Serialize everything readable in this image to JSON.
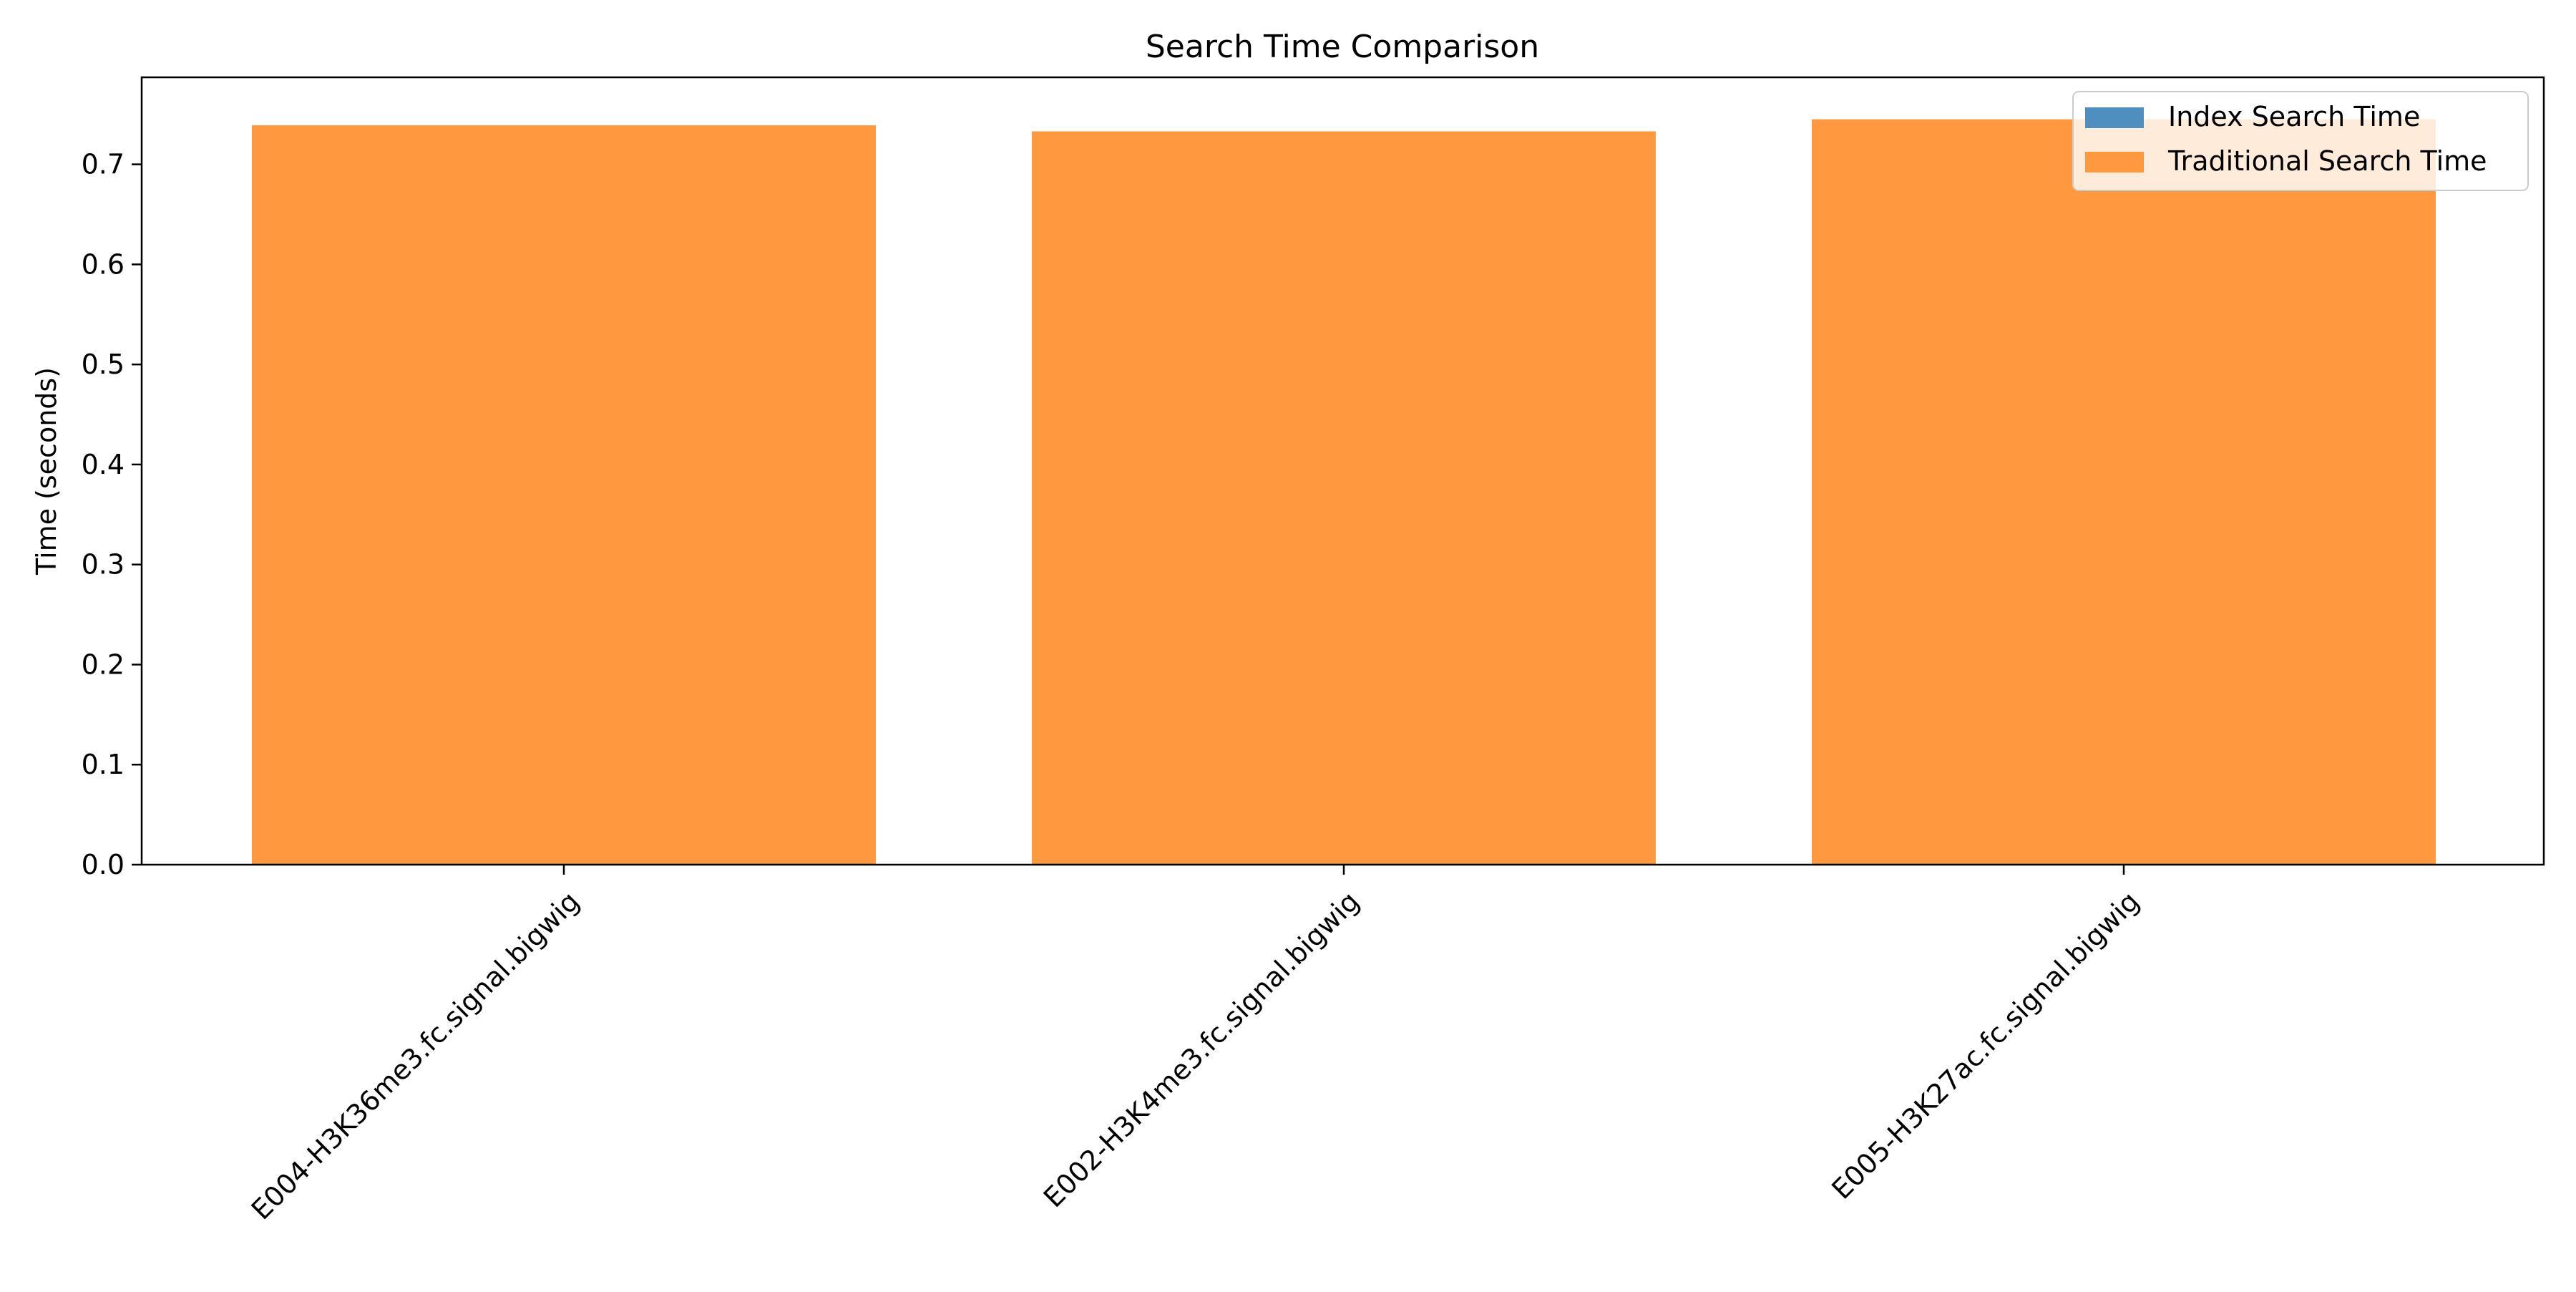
{
  "chart_data": {
    "type": "bar",
    "title": "Search Time Comparison",
    "xlabel": "",
    "ylabel": "Time (seconds)",
    "ylim": [
      0.0,
      0.787
    ],
    "yticks": [
      0.0,
      0.1,
      0.2,
      0.3,
      0.4,
      0.5,
      0.6,
      0.7
    ],
    "grid": false,
    "legend_position": "top-right",
    "categories": [
      "E004-H3K36me3.fc.signal.bigwig",
      "E002-H3K4me3.fc.signal.bigwig",
      "E005-H3K27ac.fc.signal.bigwig"
    ],
    "series": [
      {
        "name": "Index Search Time",
        "color": "#4f8fc0",
        "values": [
          0.0002,
          0.0002,
          0.0002
        ]
      },
      {
        "name": "Traditional Search Time",
        "color": "#ff9940",
        "values": [
          0.739,
          0.733,
          0.745
        ]
      }
    ]
  }
}
